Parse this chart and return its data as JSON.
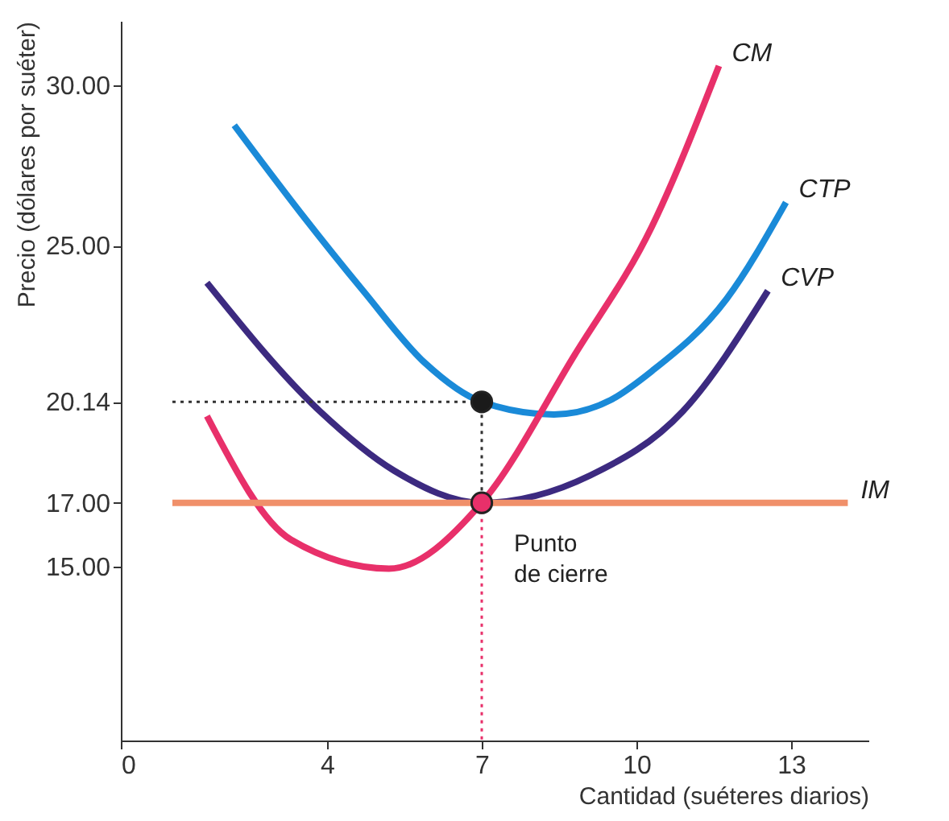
{
  "chart_data": {
    "type": "line",
    "xlabel": "Cantidad (suéteres diarios)",
    "ylabel": "Precio (dólares por suéter)",
    "xlim": [
      0,
      14.5
    ],
    "ylim": [
      9.6,
      32
    ],
    "xticks": [
      0,
      4,
      7,
      10,
      13
    ],
    "yticks": [
      {
        "value": 15,
        "label": "15.00"
      },
      {
        "value": 17,
        "label": "17.00"
      },
      {
        "value": 20.14,
        "label": "20.14"
      },
      {
        "value": 25,
        "label": "25.00"
      },
      {
        "value": 30,
        "label": "30.00"
      }
    ],
    "grid": false,
    "marker": "none",
    "line_style": "solid",
    "series": [
      {
        "name": "CTP",
        "color": "#1a8ad8",
        "x": [
          2.2,
          3.5,
          4.7,
          5.9,
          7,
          8.4,
          9.5,
          10.3,
          11.75,
          12.9
        ],
        "values": [
          28.75,
          26.0,
          23.6,
          21.35,
          20.14,
          19.75,
          20.2,
          21.1,
          23.35,
          26.35
        ]
      },
      {
        "name": "CVP",
        "color": "#3c2a80",
        "x": [
          1.67,
          3.86,
          5.3,
          7,
          9.1,
          10.9,
          12.55
        ],
        "values": [
          23.85,
          19.85,
          18.0,
          17.0,
          17.85,
          19.85,
          23.6
        ]
      },
      {
        "name": "CM",
        "color": "#e8306a",
        "x": [
          1.67,
          3.3,
          5.2,
          7,
          8.8,
          10.3,
          11.6
        ],
        "values": [
          19.7,
          15.85,
          14.95,
          17.0,
          21.6,
          25.6,
          30.6
        ]
      },
      {
        "name": "IM",
        "color": "#f0906a",
        "x": [
          1,
          14.1
        ],
        "values": [
          17.0,
          17.0
        ]
      },
      {
        "type": "line",
        "line_style": "dotted",
        "color": "#333333",
        "x": [
          1,
          7,
          7
        ],
        "values": [
          20.14,
          20.14,
          17.0
        ]
      },
      {
        "type": "line",
        "line_style": "dotted",
        "color": "#e8306a",
        "x": [
          7,
          7
        ],
        "values": [
          17.0,
          9.6
        ]
      },
      {
        "type": "scatter",
        "marker": "circle",
        "color": "#1a1a1a",
        "x": [
          7
        ],
        "values": [
          20.14
        ]
      },
      {
        "type": "scatter",
        "marker": "circle",
        "color": "#e8306a",
        "x": [
          7
        ],
        "values": [
          17.0
        ]
      }
    ],
    "annotations": [
      {
        "text": "Punto\nde cierre",
        "x": 7,
        "y": 17
      }
    ]
  }
}
